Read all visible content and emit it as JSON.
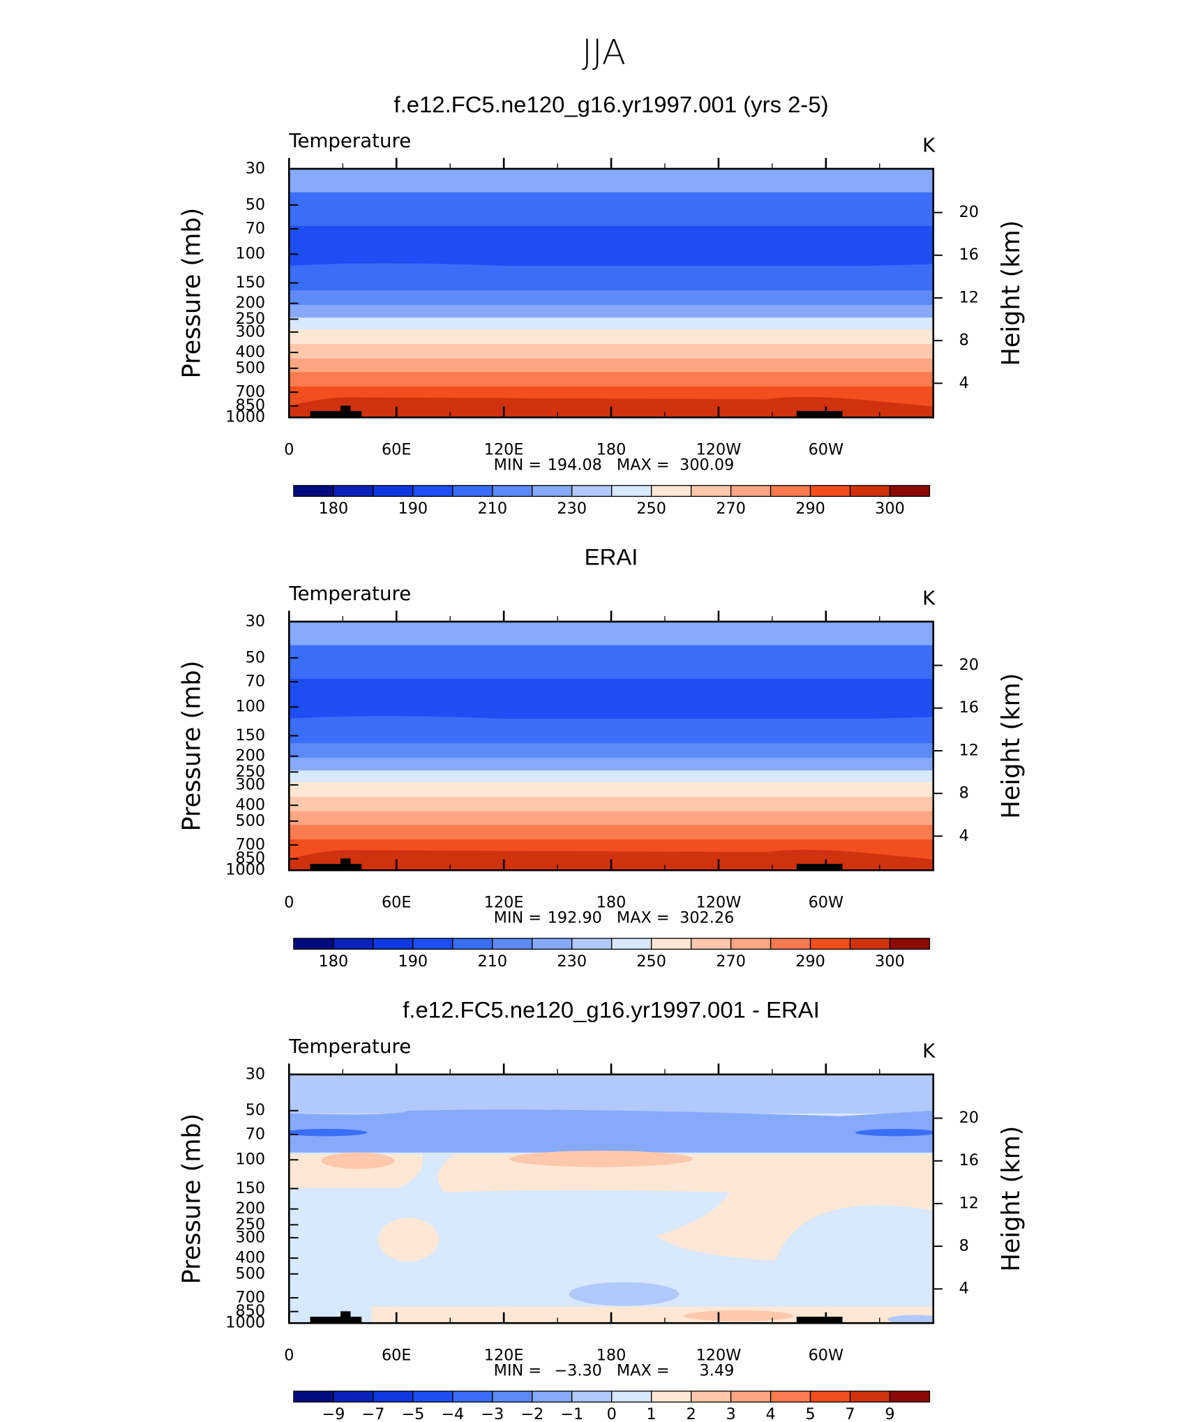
{
  "title": "JJA",
  "chart_data": [
    {
      "type": "contour",
      "title": "f.e12.FC5.ne120_g16.yr1997.001 (yrs 2-5)",
      "variable": "Temperature",
      "units": "K",
      "y_label": "Pressure (mb)",
      "y2_label": "Height (km)",
      "xlim": [
        0,
        360
      ],
      "xticks": [
        0,
        {
          "value": 60,
          "label": "60E"
        },
        {
          "value": 120,
          "label": "120E"
        },
        180,
        {
          "value": 240,
          "label": "120W"
        },
        {
          "value": 300,
          "label": "60W"
        }
      ],
      "xminor": [
        30,
        90,
        150,
        210,
        270,
        330
      ],
      "ylim": [
        1000,
        30
      ],
      "log_y": true,
      "yticks": [
        30,
        50,
        70,
        100,
        150,
        200,
        250,
        300,
        400,
        500,
        700,
        850,
        1000
      ],
      "y2lim": [
        0.8,
        24.1
      ],
      "y2ticks": [
        20,
        16,
        12,
        8,
        4
      ],
      "min_label": "MIN  =",
      "min": 194.08,
      "max_label": "MAX  =",
      "max": 300.09,
      "colorbar": {
        "colors": [
          "#000c7d",
          "#0a22b8",
          "#0f38e0",
          "#1d4ff5",
          "#3a6ef7",
          "#5d8af7",
          "#86a9f9",
          "#b1c9fb",
          "#d8e8fd",
          "#fee8d5",
          "#fdc8ac",
          "#fca683",
          "#f97b4f",
          "#f24f1f",
          "#d03210",
          "#8b0a04"
        ],
        "ticks": [
          180,
          190,
          210,
          230,
          250,
          270,
          290,
          300
        ]
      }
    },
    {
      "type": "contour",
      "title": "ERAI",
      "variable": "Temperature",
      "units": "K",
      "y_label": "Pressure (mb)",
      "y2_label": "Height (km)",
      "xlim": [
        0,
        360
      ],
      "xticks": [
        0,
        {
          "value": 60,
          "label": "60E"
        },
        {
          "value": 120,
          "label": "120E"
        },
        180,
        {
          "value": 240,
          "label": "120W"
        },
        {
          "value": 300,
          "label": "60W"
        }
      ],
      "xminor": [
        30,
        90,
        150,
        210,
        270,
        330
      ],
      "ylim": [
        1000,
        30
      ],
      "log_y": true,
      "yticks": [
        30,
        50,
        70,
        100,
        150,
        200,
        250,
        300,
        400,
        500,
        700,
        850,
        1000
      ],
      "y2lim": [
        0.8,
        24.1
      ],
      "y2ticks": [
        20,
        16,
        12,
        8,
        4
      ],
      "min_label": "MIN  =",
      "min": {
        "value": 192.9,
        "label": "192.90"
      },
      "max_label": "MAX  =",
      "max": 302.26,
      "colorbar": {
        "colors": [
          "#000c7d",
          "#0a22b8",
          "#0f38e0",
          "#1d4ff5",
          "#3a6ef7",
          "#5d8af7",
          "#86a9f9",
          "#b1c9fb",
          "#d8e8fd",
          "#fee8d5",
          "#fdc8ac",
          "#fca683",
          "#f97b4f",
          "#f24f1f",
          "#d03210",
          "#8b0a04"
        ],
        "ticks": [
          180,
          190,
          210,
          230,
          250,
          270,
          290,
          300
        ]
      }
    },
    {
      "type": "contour",
      "title": "f.e12.FC5.ne120_g16.yr1997.001 - ERAI",
      "variable": "Temperature",
      "units": "K",
      "y_label": "Pressure (mb)",
      "y2_label": "Height (km)",
      "xlim": [
        0,
        360
      ],
      "xticks": [
        0,
        {
          "value": 60,
          "label": "60E"
        },
        {
          "value": 120,
          "label": "120E"
        },
        180,
        {
          "value": 240,
          "label": "120W"
        },
        {
          "value": 300,
          "label": "60W"
        }
      ],
      "xminor": [
        30,
        90,
        150,
        210,
        270,
        330
      ],
      "ylim": [
        1000,
        30
      ],
      "log_y": true,
      "yticks": [
        30,
        50,
        70,
        100,
        150,
        200,
        250,
        300,
        400,
        500,
        700,
        850,
        1000
      ],
      "y2lim": [
        0.8,
        24.1
      ],
      "y2ticks": [
        20,
        16,
        12,
        8,
        4
      ],
      "min_label": "MIN  =",
      "min": {
        "value": -3.3,
        "label": "−3.30"
      },
      "max_label": "MAX  =",
      "max": 3.49,
      "colorbar": {
        "colors": [
          "#000c7d",
          "#0a22b8",
          "#0f38e0",
          "#1d4ff5",
          "#3a6ef7",
          "#5d8af7",
          "#86a9f9",
          "#b1c9fb",
          "#d8e8fd",
          "#fee8d5",
          "#fdc8ac",
          "#fca683",
          "#f97b4f",
          "#f24f1f",
          "#d03210",
          "#8b0a04"
        ],
        "ticks": [
          {
            "value": -9,
            "label": "−9"
          },
          {
            "value": -7,
            "label": "−7"
          },
          {
            "value": -5,
            "label": "−5"
          },
          {
            "value": -4,
            "label": "−4"
          },
          {
            "value": -3,
            "label": "−3"
          },
          {
            "value": -2,
            "label": "−2"
          },
          {
            "value": -1,
            "label": "−1"
          },
          0,
          1,
          2,
          3,
          4,
          5,
          7,
          9
        ]
      }
    }
  ]
}
